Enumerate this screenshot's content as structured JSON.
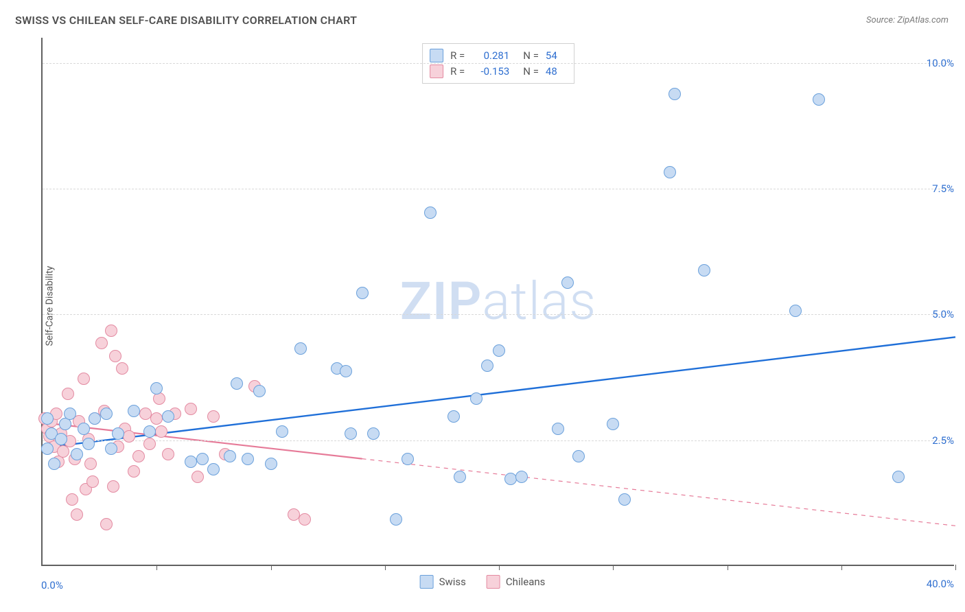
{
  "title": "SWISS VS CHILEAN SELF-CARE DISABILITY CORRELATION CHART",
  "source": "Source: ZipAtlas.com",
  "ylabel": "Self-Care Disability",
  "watermark_bold": "ZIP",
  "watermark_light": "atlas",
  "chart": {
    "type": "scatter",
    "xlim": [
      0,
      40
    ],
    "ylim": [
      0,
      10.5
    ],
    "xticks_minor": [
      5,
      10,
      15,
      20,
      25,
      30,
      35,
      40
    ],
    "yticks": [
      2.5,
      5.0,
      7.5,
      10.0
    ],
    "ytick_labels": [
      "2.5%",
      "5.0%",
      "7.5%",
      "10.0%"
    ],
    "x_min_label": "0.0%",
    "x_max_label": "40.0%",
    "background_color": "#ffffff",
    "grid_color": "#d8d8d8",
    "axis_color": "#606060",
    "tick_label_color": "#2f6fd0",
    "ylabel_fontsize": 14,
    "marker_radius": 9,
    "marker_border_width": 1.2,
    "series": [
      {
        "name": "Swiss",
        "fill": "#c7dbf3",
        "stroke": "#6aa0db",
        "line_color": "#1f6fd8",
        "line_width": 2.4,
        "R": 0.281,
        "N": 54,
        "trend": {
          "x1": 0,
          "y1": 2.35,
          "x2": 40,
          "y2": 4.55,
          "dash_after_x": 40
        },
        "points": [
          [
            0.2,
            2.3
          ],
          [
            0.2,
            2.9
          ],
          [
            0.4,
            2.6
          ],
          [
            0.5,
            2.0
          ],
          [
            0.8,
            2.5
          ],
          [
            1.0,
            2.8
          ],
          [
            1.2,
            3.0
          ],
          [
            1.5,
            2.2
          ],
          [
            1.8,
            2.7
          ],
          [
            2.0,
            2.4
          ],
          [
            2.3,
            2.9
          ],
          [
            2.8,
            3.0
          ],
          [
            3.0,
            2.3
          ],
          [
            3.3,
            2.6
          ],
          [
            4.0,
            3.05
          ],
          [
            4.7,
            2.65
          ],
          [
            5.0,
            3.5
          ],
          [
            5.5,
            2.95
          ],
          [
            6.5,
            2.05
          ],
          [
            7.0,
            2.1
          ],
          [
            7.5,
            1.9
          ],
          [
            8.2,
            2.15
          ],
          [
            8.5,
            3.6
          ],
          [
            9.0,
            2.1
          ],
          [
            9.5,
            3.45
          ],
          [
            10.0,
            2.0
          ],
          [
            10.5,
            2.65
          ],
          [
            11.3,
            4.3
          ],
          [
            12.9,
            3.9
          ],
          [
            13.3,
            3.85
          ],
          [
            13.5,
            2.6
          ],
          [
            14.0,
            5.4
          ],
          [
            14.5,
            2.6
          ],
          [
            15.5,
            0.9
          ],
          [
            16.0,
            2.1
          ],
          [
            17.0,
            7.0
          ],
          [
            18.0,
            2.95
          ],
          [
            18.3,
            1.75
          ],
          [
            19.0,
            3.3
          ],
          [
            19.5,
            3.95
          ],
          [
            20.0,
            4.25
          ],
          [
            20.5,
            1.7
          ],
          [
            21.0,
            1.75
          ],
          [
            22.6,
            2.7
          ],
          [
            23.0,
            5.6
          ],
          [
            23.5,
            2.15
          ],
          [
            25.0,
            2.8
          ],
          [
            25.5,
            1.3
          ],
          [
            27.5,
            7.8
          ],
          [
            27.7,
            9.35
          ],
          [
            29.0,
            5.85
          ],
          [
            33.0,
            5.05
          ],
          [
            34.0,
            9.25
          ],
          [
            37.5,
            1.75
          ]
        ]
      },
      {
        "name": "Chileans",
        "fill": "#f7d1da",
        "stroke": "#e38aa1",
        "line_color": "#e67a98",
        "line_width": 2.2,
        "R": -0.153,
        "N": 48,
        "trend": {
          "x1": 0,
          "y1": 2.85,
          "x2": 40,
          "y2": 0.8,
          "dash_after_x": 14
        },
        "points": [
          [
            0.1,
            2.9
          ],
          [
            0.2,
            2.7
          ],
          [
            0.3,
            2.55
          ],
          [
            0.4,
            2.85
          ],
          [
            0.5,
            2.35
          ],
          [
            0.6,
            3.0
          ],
          [
            0.7,
            2.05
          ],
          [
            0.8,
            2.6
          ],
          [
            0.9,
            2.25
          ],
          [
            1.0,
            2.8
          ],
          [
            1.1,
            3.4
          ],
          [
            1.2,
            2.45
          ],
          [
            1.3,
            1.3
          ],
          [
            1.4,
            2.1
          ],
          [
            1.5,
            1.0
          ],
          [
            1.6,
            2.85
          ],
          [
            1.8,
            3.7
          ],
          [
            1.9,
            1.5
          ],
          [
            2.0,
            2.5
          ],
          [
            2.1,
            2.0
          ],
          [
            2.2,
            1.65
          ],
          [
            2.3,
            2.9
          ],
          [
            2.6,
            4.4
          ],
          [
            2.7,
            3.05
          ],
          [
            2.8,
            0.8
          ],
          [
            3.0,
            4.65
          ],
          [
            3.1,
            1.55
          ],
          [
            3.2,
            4.15
          ],
          [
            3.3,
            2.35
          ],
          [
            3.5,
            3.9
          ],
          [
            3.6,
            2.7
          ],
          [
            3.8,
            2.55
          ],
          [
            4.0,
            1.85
          ],
          [
            4.2,
            2.15
          ],
          [
            4.5,
            3.0
          ],
          [
            4.7,
            2.4
          ],
          [
            5.0,
            2.9
          ],
          [
            5.1,
            3.3
          ],
          [
            5.2,
            2.65
          ],
          [
            5.5,
            2.2
          ],
          [
            5.8,
            3.0
          ],
          [
            6.5,
            3.1
          ],
          [
            6.8,
            1.75
          ],
          [
            7.5,
            2.95
          ],
          [
            8.0,
            2.2
          ],
          [
            9.3,
            3.55
          ],
          [
            11.0,
            1.0
          ],
          [
            11.5,
            0.9
          ]
        ]
      }
    ]
  },
  "legend_top": [
    {
      "swatch_fill": "#c7dbf3",
      "swatch_stroke": "#6aa0db",
      "R_label": "R  =",
      "R": "0.281",
      "N_label": "N  =",
      "N": "54"
    },
    {
      "swatch_fill": "#f7d1da",
      "swatch_stroke": "#e38aa1",
      "R_label": "R  =",
      "R": "-0.153",
      "N_label": "N  =",
      "N": "48"
    }
  ],
  "legend_bottom": [
    {
      "swatch_fill": "#c7dbf3",
      "swatch_stroke": "#6aa0db",
      "label": "Swiss"
    },
    {
      "swatch_fill": "#f7d1da",
      "swatch_stroke": "#e38aa1",
      "label": "Chileans"
    }
  ]
}
